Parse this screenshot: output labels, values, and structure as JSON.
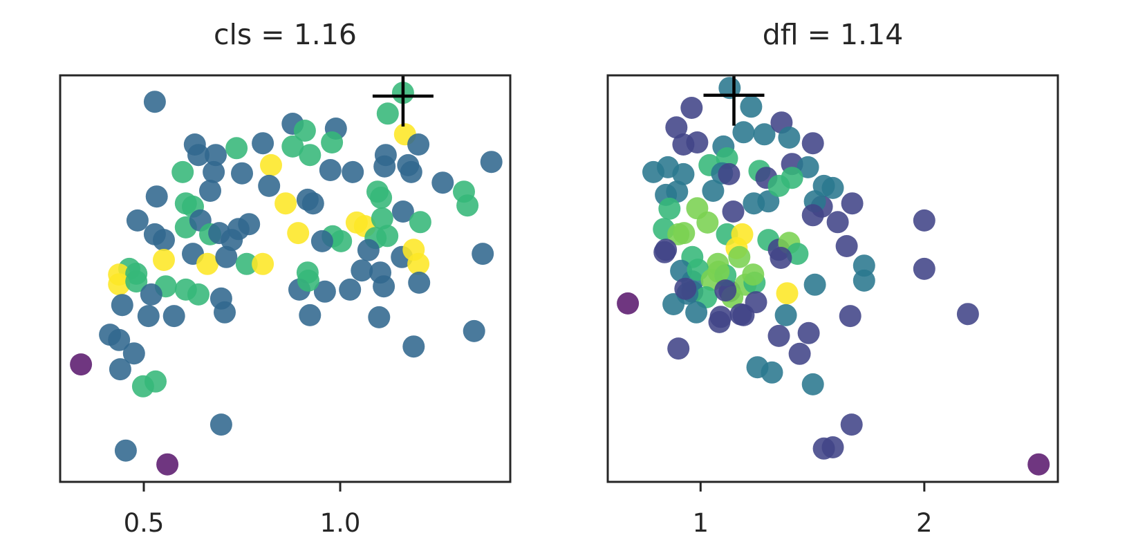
{
  "figure": {
    "background": "#ffffff",
    "frame_color": "#262626",
    "text_color": "#262626",
    "best_marker_color": "#000000",
    "point_radius": 16,
    "point_opacity": 0.88
  },
  "palette": {
    "p": "#5b1a6e",
    "i": "#414487",
    "b": "#31688e",
    "t": "#2a788e",
    "g": "#35b779",
    "yg": "#7ad151",
    "y": "#fde725"
  },
  "chart_data": [
    {
      "type": "scatter",
      "param": "cls",
      "title": "cls = 1.16",
      "best_value": 1.16,
      "xlim": [
        0.287,
        1.433
      ],
      "xticks": [
        0.5,
        1.0
      ],
      "xtick_labels": [
        "0.5",
        "1.0"
      ],
      "ylim": [
        0,
        1
      ],
      "y_axis": "unlabeled (no ticks)",
      "grid": false,
      "best_marker": {
        "shape": "plus",
        "x": 1.16,
        "y": 0.949
      },
      "points": [
        {
          "x": 0.528,
          "y": 0.935,
          "c": "b"
        },
        {
          "x": 0.63,
          "y": 0.83,
          "c": "b"
        },
        {
          "x": 0.639,
          "y": 0.804,
          "c": "b"
        },
        {
          "x": 0.683,
          "y": 0.804,
          "c": "b"
        },
        {
          "x": 0.736,
          "y": 0.821,
          "c": "g"
        },
        {
          "x": 0.803,
          "y": 0.833,
          "c": "b"
        },
        {
          "x": 0.824,
          "y": 0.779,
          "c": "y"
        },
        {
          "x": 0.599,
          "y": 0.762,
          "c": "g"
        },
        {
          "x": 0.678,
          "y": 0.762,
          "c": "b"
        },
        {
          "x": 0.75,
          "y": 0.759,
          "c": "b"
        },
        {
          "x": 0.819,
          "y": 0.728,
          "c": "b"
        },
        {
          "x": 0.669,
          "y": 0.716,
          "c": "b"
        },
        {
          "x": 0.533,
          "y": 0.702,
          "c": "b"
        },
        {
          "x": 0.607,
          "y": 0.685,
          "c": "g"
        },
        {
          "x": 0.625,
          "y": 0.677,
          "c": "g"
        },
        {
          "x": 0.484,
          "y": 0.643,
          "c": "b"
        },
        {
          "x": 0.528,
          "y": 0.609,
          "c": "b"
        },
        {
          "x": 0.551,
          "y": 0.595,
          "c": "b"
        },
        {
          "x": 0.607,
          "y": 0.626,
          "c": "g"
        },
        {
          "x": 0.644,
          "y": 0.643,
          "c": "b"
        },
        {
          "x": 0.669,
          "y": 0.609,
          "c": "g"
        },
        {
          "x": 0.692,
          "y": 0.612,
          "c": "b"
        },
        {
          "x": 0.724,
          "y": 0.595,
          "c": "b"
        },
        {
          "x": 0.741,
          "y": 0.622,
          "c": "b"
        },
        {
          "x": 0.768,
          "y": 0.634,
          "c": "b"
        },
        {
          "x": 0.551,
          "y": 0.546,
          "c": "y"
        },
        {
          "x": 0.625,
          "y": 0.561,
          "c": "b"
        },
        {
          "x": 0.662,
          "y": 0.536,
          "c": "y"
        },
        {
          "x": 0.71,
          "y": 0.553,
          "c": "b"
        },
        {
          "x": 0.762,
          "y": 0.536,
          "c": "g"
        },
        {
          "x": 0.803,
          "y": 0.536,
          "c": "y"
        },
        {
          "x": 0.463,
          "y": 0.524,
          "c": "g"
        },
        {
          "x": 0.437,
          "y": 0.51,
          "c": "y"
        },
        {
          "x": 0.481,
          "y": 0.512,
          "c": "g"
        },
        {
          "x": 1.16,
          "y": 0.957,
          "c": "g"
        },
        {
          "x": 1.121,
          "y": 0.906,
          "c": "g"
        },
        {
          "x": 0.879,
          "y": 0.881,
          "c": "b"
        },
        {
          "x": 0.91,
          "y": 0.864,
          "c": "g"
        },
        {
          "x": 0.989,
          "y": 0.869,
          "c": "b"
        },
        {
          "x": 0.979,
          "y": 0.835,
          "c": "g"
        },
        {
          "x": 0.879,
          "y": 0.825,
          "c": "g"
        },
        {
          "x": 0.923,
          "y": 0.804,
          "c": "g"
        },
        {
          "x": 1.165,
          "y": 0.855,
          "c": "y"
        },
        {
          "x": 1.199,
          "y": 0.83,
          "c": "b"
        },
        {
          "x": 1.116,
          "y": 0.804,
          "c": "b"
        },
        {
          "x": 1.113,
          "y": 0.776,
          "c": "b"
        },
        {
          "x": 1.173,
          "y": 0.779,
          "c": "b"
        },
        {
          "x": 1.181,
          "y": 0.762,
          "c": "b"
        },
        {
          "x": 1.385,
          "y": 0.787,
          "c": "b"
        },
        {
          "x": 0.975,
          "y": 0.767,
          "c": "b"
        },
        {
          "x": 1.032,
          "y": 0.762,
          "c": "b"
        },
        {
          "x": 1.261,
          "y": 0.736,
          "c": "b"
        },
        {
          "x": 1.315,
          "y": 0.714,
          "c": "g"
        },
        {
          "x": 1.324,
          "y": 0.68,
          "c": "g"
        },
        {
          "x": 1.095,
          "y": 0.714,
          "c": "g"
        },
        {
          "x": 1.104,
          "y": 0.699,
          "c": "g"
        },
        {
          "x": 0.917,
          "y": 0.694,
          "c": "b"
        },
        {
          "x": 0.931,
          "y": 0.685,
          "c": "b"
        },
        {
          "x": 0.861,
          "y": 0.685,
          "c": "y"
        },
        {
          "x": 1.16,
          "y": 0.665,
          "c": "b"
        },
        {
          "x": 1.204,
          "y": 0.639,
          "c": "g"
        },
        {
          "x": 1.042,
          "y": 0.638,
          "c": "y"
        },
        {
          "x": 1.063,
          "y": 0.629,
          "c": "y"
        },
        {
          "x": 1.107,
          "y": 0.648,
          "c": "g"
        },
        {
          "x": 0.893,
          "y": 0.612,
          "c": "y"
        },
        {
          "x": 0.981,
          "y": 0.604,
          "c": "g"
        },
        {
          "x": 1.002,
          "y": 0.592,
          "c": "g"
        },
        {
          "x": 0.954,
          "y": 0.592,
          "c": "b"
        },
        {
          "x": 1.09,
          "y": 0.6,
          "c": "g"
        },
        {
          "x": 1.12,
          "y": 0.605,
          "c": "g"
        },
        {
          "x": 1.072,
          "y": 0.57,
          "c": "b"
        },
        {
          "x": 1.157,
          "y": 0.553,
          "c": "b"
        },
        {
          "x": 1.187,
          "y": 0.571,
          "c": "y"
        },
        {
          "x": 1.199,
          "y": 0.536,
          "c": "y"
        },
        {
          "x": 1.363,
          "y": 0.561,
          "c": "b"
        },
        {
          "x": 1.055,
          "y": 0.52,
          "c": "b"
        },
        {
          "x": 1.102,
          "y": 0.515,
          "c": "b"
        },
        {
          "x": 0.917,
          "y": 0.515,
          "c": "g"
        },
        {
          "x": 0.437,
          "y": 0.486,
          "c": "y"
        },
        {
          "x": 0.481,
          "y": 0.493,
          "c": "g"
        },
        {
          "x": 0.556,
          "y": 0.481,
          "c": "g"
        },
        {
          "x": 0.607,
          "y": 0.473,
          "c": "g"
        },
        {
          "x": 0.639,
          "y": 0.461,
          "c": "g"
        },
        {
          "x": 0.519,
          "y": 0.461,
          "c": "b"
        },
        {
          "x": 0.697,
          "y": 0.451,
          "c": "b"
        },
        {
          "x": 0.445,
          "y": 0.435,
          "c": "b"
        },
        {
          "x": 0.512,
          "y": 0.408,
          "c": "b"
        },
        {
          "x": 0.577,
          "y": 0.408,
          "c": "b"
        },
        {
          "x": 0.706,
          "y": 0.417,
          "c": "b"
        },
        {
          "x": 0.414,
          "y": 0.362,
          "c": "b"
        },
        {
          "x": 0.437,
          "y": 0.349,
          "c": "b"
        },
        {
          "x": 0.475,
          "y": 0.316,
          "c": "b"
        },
        {
          "x": 0.44,
          "y": 0.277,
          "c": "b"
        },
        {
          "x": 0.34,
          "y": 0.289,
          "c": "p"
        },
        {
          "x": 0.498,
          "y": 0.235,
          "c": "g"
        },
        {
          "x": 0.53,
          "y": 0.247,
          "c": "g"
        },
        {
          "x": 0.697,
          "y": 0.141,
          "c": "b"
        },
        {
          "x": 0.454,
          "y": 0.077,
          "c": "b"
        },
        {
          "x": 0.56,
          "y": 0.043,
          "c": "p"
        },
        {
          "x": 0.896,
          "y": 0.473,
          "c": "b"
        },
        {
          "x": 0.961,
          "y": 0.468,
          "c": "b"
        },
        {
          "x": 1.025,
          "y": 0.473,
          "c": "b"
        },
        {
          "x": 1.111,
          "y": 0.481,
          "c": "b"
        },
        {
          "x": 1.201,
          "y": 0.49,
          "c": "b"
        },
        {
          "x": 0.919,
          "y": 0.495,
          "c": "g"
        },
        {
          "x": 0.923,
          "y": 0.41,
          "c": "b"
        },
        {
          "x": 1.099,
          "y": 0.405,
          "c": "b"
        },
        {
          "x": 1.187,
          "y": 0.333,
          "c": "b"
        },
        {
          "x": 1.341,
          "y": 0.371,
          "c": "b"
        }
      ]
    },
    {
      "type": "scatter",
      "param": "dfl",
      "title": "dfl = 1.14",
      "best_value": 1.14,
      "xlim": [
        0.585,
        2.597
      ],
      "xticks": [
        1,
        2
      ],
      "xtick_labels": [
        "1",
        "2"
      ],
      "ylim": [
        0,
        1
      ],
      "y_axis": "unlabeled (no ticks)",
      "grid": false,
      "best_marker": {
        "shape": "plus",
        "x": 1.149,
        "y": 0.951
      },
      "points": [
        {
          "x": 1.13,
          "y": 0.969,
          "c": "t"
        },
        {
          "x": 1.226,
          "y": 0.923,
          "c": "t"
        },
        {
          "x": 0.96,
          "y": 0.92,
          "c": "i"
        },
        {
          "x": 0.892,
          "y": 0.872,
          "c": "i"
        },
        {
          "x": 0.923,
          "y": 0.83,
          "c": "i"
        },
        {
          "x": 0.985,
          "y": 0.835,
          "c": "i"
        },
        {
          "x": 1.192,
          "y": 0.86,
          "c": "t"
        },
        {
          "x": 1.285,
          "y": 0.855,
          "c": "t"
        },
        {
          "x": 1.362,
          "y": 0.884,
          "c": "i"
        },
        {
          "x": 1.396,
          "y": 0.847,
          "c": "t"
        },
        {
          "x": 1.502,
          "y": 0.833,
          "c": "i"
        },
        {
          "x": 1.102,
          "y": 0.825,
          "c": "t"
        },
        {
          "x": 1.118,
          "y": 0.796,
          "c": "g"
        },
        {
          "x": 1.409,
          "y": 0.782,
          "c": "i"
        },
        {
          "x": 1.48,
          "y": 0.774,
          "c": "t"
        },
        {
          "x": 0.789,
          "y": 0.762,
          "c": "t"
        },
        {
          "x": 0.854,
          "y": 0.774,
          "c": "t"
        },
        {
          "x": 0.923,
          "y": 0.757,
          "c": "t"
        },
        {
          "x": 1.04,
          "y": 0.779,
          "c": "g"
        },
        {
          "x": 1.096,
          "y": 0.759,
          "c": "t"
        },
        {
          "x": 1.127,
          "y": 0.757,
          "c": "i"
        },
        {
          "x": 1.263,
          "y": 0.765,
          "c": "g"
        },
        {
          "x": 1.294,
          "y": 0.748,
          "c": "i"
        },
        {
          "x": 1.409,
          "y": 0.748,
          "c": "g"
        },
        {
          "x": 1.551,
          "y": 0.728,
          "c": "t"
        },
        {
          "x": 1.542,
          "y": 0.677,
          "c": "i"
        },
        {
          "x": 0.845,
          "y": 0.706,
          "c": "t"
        },
        {
          "x": 0.895,
          "y": 0.714,
          "c": "t"
        },
        {
          "x": 0.861,
          "y": 0.672,
          "c": "g"
        },
        {
          "x": 0.985,
          "y": 0.673,
          "c": "yg"
        },
        {
          "x": 1.056,
          "y": 0.716,
          "c": "t"
        },
        {
          "x": 1.146,
          "y": 0.665,
          "c": "i"
        },
        {
          "x": 1.238,
          "y": 0.685,
          "c": "t"
        },
        {
          "x": 1.303,
          "y": 0.69,
          "c": "t"
        },
        {
          "x": 1.35,
          "y": 0.728,
          "c": "g"
        },
        {
          "x": 1.511,
          "y": 0.69,
          "c": "t"
        },
        {
          "x": 1.502,
          "y": 0.656,
          "c": "i"
        },
        {
          "x": 0.836,
          "y": 0.622,
          "c": "g"
        },
        {
          "x": 0.901,
          "y": 0.609,
          "c": "yg"
        },
        {
          "x": 1.031,
          "y": 0.638,
          "c": "yg"
        },
        {
          "x": 1.118,
          "y": 0.609,
          "c": "g"
        },
        {
          "x": 1.186,
          "y": 0.609,
          "c": "y"
        },
        {
          "x": 1.303,
          "y": 0.595,
          "c": "g"
        },
        {
          "x": 1.35,
          "y": 0.571,
          "c": "i"
        },
        {
          "x": 1.396,
          "y": 0.588,
          "c": "yg"
        },
        {
          "x": 1.433,
          "y": 0.561,
          "c": "g"
        },
        {
          "x": 0.845,
          "y": 0.571,
          "c": "i"
        },
        {
          "x": 0.963,
          "y": 0.553,
          "c": "g"
        },
        {
          "x": 0.913,
          "y": 0.519,
          "c": "t"
        },
        {
          "x": 1.077,
          "y": 0.536,
          "c": "yg"
        },
        {
          "x": 1.161,
          "y": 0.575,
          "c": "y"
        },
        {
          "x": 1.591,
          "y": 0.723,
          "c": "t"
        },
        {
          "x": 1.678,
          "y": 0.685,
          "c": "i"
        },
        {
          "x": 1.613,
          "y": 0.639,
          "c": "i"
        },
        {
          "x": 1.653,
          "y": 0.58,
          "c": "i"
        },
        {
          "x": 1.731,
          "y": 0.532,
          "c": "t"
        },
        {
          "x": 2.0,
          "y": 0.643,
          "c": "i"
        },
        {
          "x": 2.0,
          "y": 0.524,
          "c": "i"
        },
        {
          "x": 0.675,
          "y": 0.439,
          "c": "p"
        },
        {
          "x": 0.963,
          "y": 0.468,
          "c": "i"
        },
        {
          "x": 0.963,
          "y": 0.493,
          "c": "t"
        },
        {
          "x": 1.13,
          "y": 0.469,
          "c": "i"
        },
        {
          "x": 1.201,
          "y": 0.485,
          "c": "yg"
        },
        {
          "x": 1.241,
          "y": 0.49,
          "c": "g"
        },
        {
          "x": 1.248,
          "y": 0.442,
          "c": "i"
        },
        {
          "x": 1.387,
          "y": 0.464,
          "c": "y"
        },
        {
          "x": 1.381,
          "y": 0.41,
          "c": "t"
        },
        {
          "x": 1.511,
          "y": 0.485,
          "c": "t"
        },
        {
          "x": 1.084,
          "y": 0.393,
          "c": "i"
        },
        {
          "x": 1.192,
          "y": 0.41,
          "c": "i"
        },
        {
          "x": 1.35,
          "y": 0.359,
          "c": "i"
        },
        {
          "x": 1.483,
          "y": 0.366,
          "c": "i"
        },
        {
          "x": 1.443,
          "y": 0.315,
          "c": "i"
        },
        {
          "x": 0.901,
          "y": 0.328,
          "c": "i"
        },
        {
          "x": 1.254,
          "y": 0.282,
          "c": "t"
        },
        {
          "x": 1.319,
          "y": 0.269,
          "c": "t"
        },
        {
          "x": 1.502,
          "y": 0.24,
          "c": "t"
        },
        {
          "x": 1.551,
          "y": 0.082,
          "c": "i"
        },
        {
          "x": 1.731,
          "y": 0.495,
          "c": "t"
        },
        {
          "x": 1.669,
          "y": 0.408,
          "c": "i"
        },
        {
          "x": 2.195,
          "y": 0.413,
          "c": "i"
        },
        {
          "x": 1.675,
          "y": 0.141,
          "c": "i"
        },
        {
          "x": 1.591,
          "y": 0.085,
          "c": "i"
        },
        {
          "x": 2.511,
          "y": 0.043,
          "c": "p"
        },
        {
          "x": 0.988,
          "y": 0.522,
          "c": "g"
        },
        {
          "x": 1.05,
          "y": 0.497,
          "c": "yg"
        },
        {
          "x": 1.111,
          "y": 0.508,
          "c": "g"
        },
        {
          "x": 1.025,
          "y": 0.454,
          "c": "g"
        },
        {
          "x": 1.142,
          "y": 0.454,
          "c": "yg"
        },
        {
          "x": 0.941,
          "y": 0.463,
          "c": "t"
        },
        {
          "x": 0.879,
          "y": 0.437,
          "c": "t"
        },
        {
          "x": 0.981,
          "y": 0.417,
          "c": "t"
        },
        {
          "x": 1.173,
          "y": 0.553,
          "c": "yg"
        },
        {
          "x": 0.926,
          "y": 0.612,
          "c": "yg"
        },
        {
          "x": 1.08,
          "y": 0.517,
          "c": "yg"
        },
        {
          "x": 1.235,
          "y": 0.51,
          "c": "yg"
        },
        {
          "x": 0.839,
          "y": 0.565,
          "c": "i"
        },
        {
          "x": 0.932,
          "y": 0.475,
          "c": "i"
        },
        {
          "x": 1.111,
          "y": 0.471,
          "c": "i"
        },
        {
          "x": 1.09,
          "y": 0.406,
          "c": "i"
        },
        {
          "x": 1.18,
          "y": 0.412,
          "c": "i"
        },
        {
          "x": 1.359,
          "y": 0.551,
          "c": "i"
        }
      ]
    }
  ]
}
